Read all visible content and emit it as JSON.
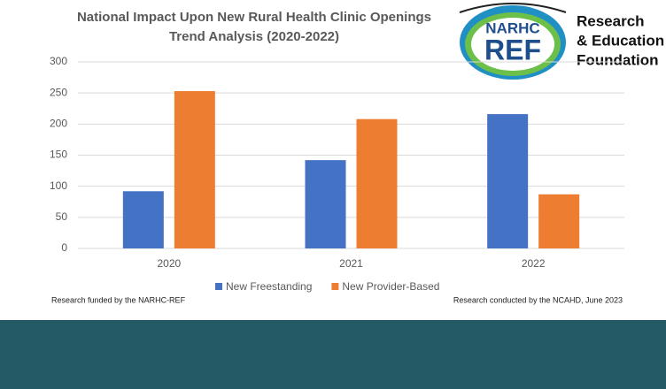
{
  "chart_data": {
    "type": "bar",
    "title": "National Impact Upon New Rural Health Clinic Openings",
    "subtitle": "Trend Analysis (2020-2022)",
    "categories": [
      "2020",
      "2021",
      "2022"
    ],
    "series": [
      {
        "name": "New Freestanding",
        "color": "#4472c4",
        "values": [
          92,
          142,
          216
        ]
      },
      {
        "name": "New Provider-Based",
        "color": "#ed7d31",
        "values": [
          253,
          208,
          87
        ]
      }
    ],
    "ylim": [
      0,
      300
    ],
    "yticks": [
      0,
      50,
      100,
      150,
      200,
      250,
      300
    ],
    "grid": true,
    "legend": "bottom"
  },
  "logo": {
    "mark_top": "NARHC",
    "mark_bottom": "REF",
    "lines": [
      "Research",
      "& Education",
      "Foundation"
    ]
  },
  "footnotes": {
    "left": "Research funded by the NARHC-REF",
    "right": "Research conducted by the NCAHD, June 2023"
  }
}
